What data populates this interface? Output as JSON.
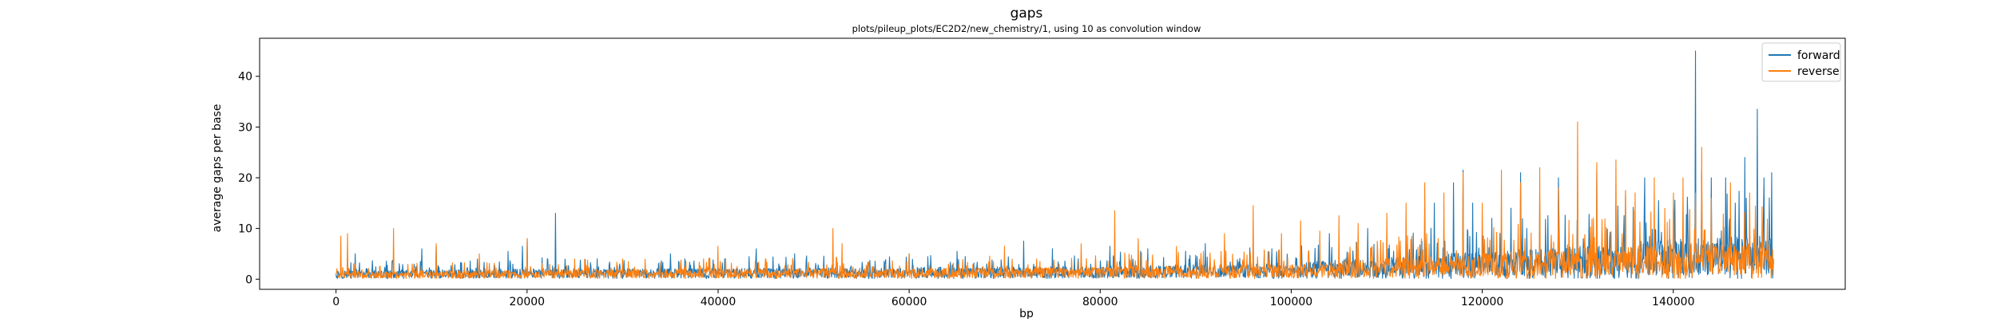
{
  "chart_data": {
    "type": "line",
    "title": "gaps",
    "subtitle": "plots/pileup_plots/EC2D2/new_chemistry/1, using 10 as convolution window",
    "xlabel": "bp",
    "ylabel": "average gaps per base",
    "xlim": [
      -8000,
      158000
    ],
    "ylim": [
      -2.0,
      47.5
    ],
    "xticks": [
      0,
      20000,
      40000,
      60000,
      80000,
      100000,
      120000,
      140000
    ],
    "xtick_labels": [
      "0",
      "20000",
      "40000",
      "60000",
      "80000",
      "100000",
      "120000",
      "140000"
    ],
    "yticks": [
      0,
      10,
      20,
      30,
      40
    ],
    "ytick_labels": [
      "0",
      "10",
      "20",
      "30",
      "40"
    ],
    "grid": false,
    "legend_position": "top-right",
    "x_max": 150500,
    "series": [
      {
        "name": "forward",
        "color": "#1f77b4",
        "baseline": [
          [
            0,
            1.2
          ],
          [
            20000,
            1.4
          ],
          [
            40000,
            1.5
          ],
          [
            60000,
            1.6
          ],
          [
            80000,
            1.8
          ],
          [
            100000,
            2.2
          ],
          [
            110000,
            3.0
          ],
          [
            120000,
            3.8
          ],
          [
            130000,
            4.5
          ],
          [
            140000,
            5.5
          ],
          [
            150500,
            6.0
          ]
        ],
        "spikes": [
          [
            0,
            1.0
          ],
          [
            2000,
            5.0
          ],
          [
            9000,
            6.0
          ],
          [
            10500,
            6.5
          ],
          [
            18000,
            5.5
          ],
          [
            19500,
            6.5
          ],
          [
            20000,
            8.0
          ],
          [
            23000,
            13.0
          ],
          [
            35000,
            5.0
          ],
          [
            44000,
            6.0
          ],
          [
            48000,
            5.0
          ],
          [
            60000,
            5.0
          ],
          [
            65000,
            5.5
          ],
          [
            72000,
            7.5
          ],
          [
            75000,
            6.0
          ],
          [
            81000,
            6.5
          ],
          [
            85000,
            6.0
          ],
          [
            91000,
            7.0
          ],
          [
            98000,
            6.0
          ],
          [
            104000,
            9.0
          ],
          [
            108000,
            10.0
          ],
          [
            112000,
            9.0
          ],
          [
            114000,
            14.0
          ],
          [
            115000,
            15.0
          ],
          [
            117000,
            19.0
          ],
          [
            118000,
            21.5
          ],
          [
            119000,
            15.0
          ],
          [
            121000,
            12.0
          ],
          [
            123000,
            14.0
          ],
          [
            124000,
            21.0
          ],
          [
            126000,
            15.0
          ],
          [
            128000,
            20.0
          ],
          [
            130000,
            11.5
          ],
          [
            132000,
            21.5
          ],
          [
            134000,
            15.0
          ],
          [
            135000,
            17.0
          ],
          [
            137000,
            20.0
          ],
          [
            140000,
            14.0
          ],
          [
            141500,
            12.0
          ],
          [
            142300,
            45.0
          ],
          [
            143000,
            21.0
          ],
          [
            144000,
            20.0
          ],
          [
            145500,
            20.0
          ],
          [
            146500,
            15.0
          ],
          [
            147500,
            24.0
          ],
          [
            148800,
            33.5
          ],
          [
            149500,
            20.0
          ],
          [
            150300,
            21.0
          ],
          [
            150500,
            3.0
          ]
        ]
      },
      {
        "name": "reverse",
        "color": "#ff7f0e",
        "baseline": [
          [
            0,
            1.0
          ],
          [
            20000,
            1.3
          ],
          [
            40000,
            1.4
          ],
          [
            60000,
            1.5
          ],
          [
            80000,
            1.7
          ],
          [
            100000,
            2.0
          ],
          [
            110000,
            2.8
          ],
          [
            120000,
            3.5
          ],
          [
            130000,
            4.2
          ],
          [
            140000,
            4.8
          ],
          [
            150500,
            5.0
          ]
        ],
        "spikes": [
          [
            0,
            1.0
          ],
          [
            500,
            8.5
          ],
          [
            1200,
            9.0
          ],
          [
            2000,
            3.0
          ],
          [
            6000,
            10.0
          ],
          [
            10500,
            7.0
          ],
          [
            15000,
            5.0
          ],
          [
            20000,
            8.0
          ],
          [
            25000,
            4.0
          ],
          [
            30000,
            4.0
          ],
          [
            40000,
            6.5
          ],
          [
            45000,
            4.0
          ],
          [
            52000,
            10.0
          ],
          [
            53000,
            7.0
          ],
          [
            60000,
            5.0
          ],
          [
            70000,
            6.5
          ],
          [
            78000,
            7.0
          ],
          [
            81500,
            13.5
          ],
          [
            84000,
            8.0
          ],
          [
            88000,
            6.5
          ],
          [
            93000,
            9.0
          ],
          [
            96000,
            14.5
          ],
          [
            99000,
            9.0
          ],
          [
            101000,
            11.5
          ],
          [
            103000,
            9.5
          ],
          [
            105000,
            12.5
          ],
          [
            107000,
            11.0
          ],
          [
            110000,
            13.0
          ],
          [
            112000,
            15.0
          ],
          [
            114000,
            19.0
          ],
          [
            116000,
            17.0
          ],
          [
            118000,
            21.0
          ],
          [
            120000,
            15.0
          ],
          [
            122000,
            21.5
          ],
          [
            124000,
            19.0
          ],
          [
            126000,
            22.0
          ],
          [
            128000,
            18.0
          ],
          [
            130000,
            31.0
          ],
          [
            132000,
            23.0
          ],
          [
            134000,
            23.5
          ],
          [
            135000,
            17.5
          ],
          [
            136000,
            17.0
          ],
          [
            138000,
            20.0
          ],
          [
            140000,
            17.0
          ],
          [
            141000,
            20.0
          ],
          [
            142300,
            17.0
          ],
          [
            143000,
            26.0
          ],
          [
            144000,
            16.0
          ],
          [
            146000,
            19.0
          ],
          [
            148000,
            17.0
          ],
          [
            150500,
            4.0
          ]
        ]
      }
    ]
  }
}
